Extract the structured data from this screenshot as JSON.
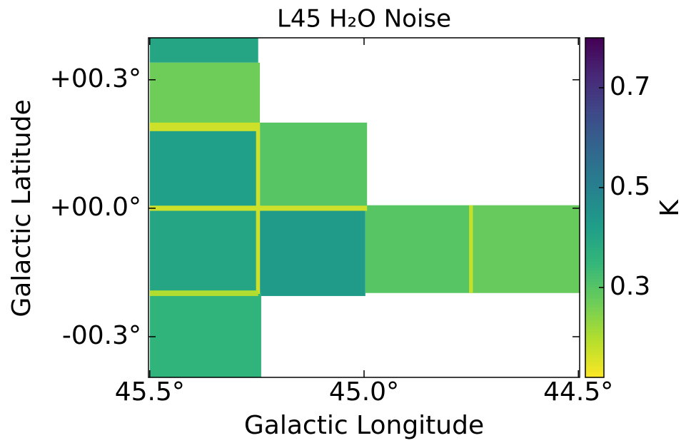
{
  "chart_data": {
    "type": "map",
    "title": "L45 H₂O Noise",
    "xlabel": "Galactic Longitude",
    "ylabel": "Galactic Latitude",
    "xlim": [
      45.503,
      44.497
    ],
    "ylim": [
      -0.395,
      0.398
    ],
    "xticks": [
      {
        "value": 45.5,
        "label": "45.5°"
      },
      {
        "value": 45.0,
        "label": "45.0°"
      },
      {
        "value": 44.5,
        "label": "44.5°"
      }
    ],
    "yticks": [
      {
        "value": 0.3,
        "label": "+00.3°"
      },
      {
        "value": 0.0,
        "label": "+00.0°"
      },
      {
        "value": -0.3,
        "label": "-00.3°"
      }
    ],
    "colormap": "viridis_r",
    "clim": [
      0.12,
      0.8
    ],
    "cticks": [
      0.3,
      0.5,
      0.7
    ],
    "clabel": "K",
    "tiles": [
      {
        "lon": [
          45.5,
          45.247
        ],
        "lat": [
          0.34,
          0.398
        ],
        "value": 0.4
      },
      {
        "lon": [
          45.5,
          45.243
        ],
        "lat": [
          0.187,
          0.34
        ],
        "value": 0.27
      },
      {
        "lon": [
          45.5,
          45.25
        ],
        "lat": [
          0.0,
          0.187
        ],
        "value": 0.42
      },
      {
        "lon": [
          45.243,
          44.993
        ],
        "lat": [
          0.0,
          0.2
        ],
        "value": 0.3
      },
      {
        "lon": [
          45.5,
          45.247
        ],
        "lat": [
          -0.197,
          0.0
        ],
        "value": 0.4
      },
      {
        "lon": [
          45.243,
          44.997
        ],
        "lat": [
          -0.205,
          0.0
        ],
        "value": 0.43
      },
      {
        "lon": [
          44.997,
          44.75
        ],
        "lat": [
          -0.198,
          0.007
        ],
        "value": 0.3
      },
      {
        "lon": [
          44.75,
          44.497
        ],
        "lat": [
          -0.198,
          0.007
        ],
        "value": 0.28
      },
      {
        "lon": [
          45.5,
          45.24
        ],
        "lat": [
          -0.395,
          -0.197
        ],
        "value": 0.36
      },
      {
        "lon": [
          45.5,
          45.245
        ],
        "lat": [
          0.18,
          0.2
        ],
        "value": 0.17
      },
      {
        "lon": [
          45.5,
          44.993
        ],
        "lat": [
          -0.006,
          0.006
        ],
        "value": 0.17
      },
      {
        "lon": [
          45.252,
          45.243
        ],
        "lat": [
          -0.2,
          0.2
        ],
        "value": 0.17
      },
      {
        "lon": [
          45.5,
          45.247
        ],
        "lat": [
          -0.205,
          -0.192
        ],
        "value": 0.2
      },
      {
        "lon": [
          44.755,
          44.746
        ],
        "lat": [
          -0.198,
          0.007
        ],
        "value": 0.18
      }
    ]
  }
}
